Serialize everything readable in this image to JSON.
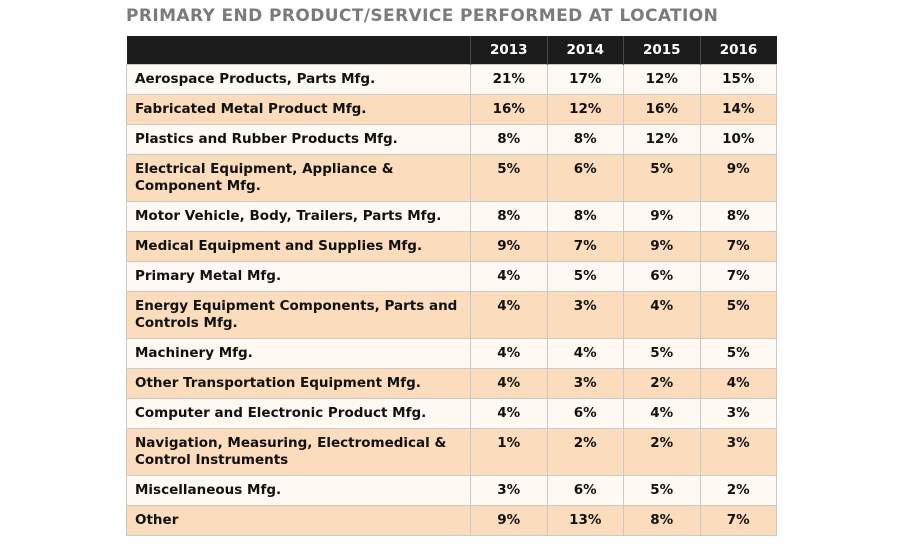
{
  "title": "PRIMARY END PRODUCT/SERVICE PERFORMED AT LOCATION",
  "colors": {
    "header_bg": "#1b1b1b",
    "row_light": "#fef9f3",
    "row_peach": "#fbdcbd",
    "title_gray": "#7b7b7b"
  },
  "chart_data": {
    "type": "table",
    "title": "PRIMARY END PRODUCT/SERVICE PERFORMED AT LOCATION",
    "columns": [
      "",
      "2013",
      "2014",
      "2015",
      "2016"
    ],
    "rows": [
      {
        "label": "Aerospace Products, Parts Mfg.",
        "values": [
          "21%",
          "17%",
          "12%",
          "15%"
        ]
      },
      {
        "label": "Fabricated Metal Product Mfg.",
        "values": [
          "16%",
          "12%",
          "16%",
          "14%"
        ]
      },
      {
        "label": "Plastics and Rubber Products Mfg.",
        "values": [
          "8%",
          "8%",
          "12%",
          "10%"
        ]
      },
      {
        "label": "Electrical Equipment, Appliance & Component Mfg.",
        "values": [
          "5%",
          "6%",
          "5%",
          "9%"
        ]
      },
      {
        "label": "Motor Vehicle, Body, Trailers, Parts Mfg.",
        "values": [
          "8%",
          "8%",
          "9%",
          "8%"
        ]
      },
      {
        "label": "Medical Equipment and Supplies Mfg.",
        "values": [
          "9%",
          "7%",
          "9%",
          "7%"
        ]
      },
      {
        "label": "Primary Metal Mfg.",
        "values": [
          "4%",
          "5%",
          "6%",
          "7%"
        ]
      },
      {
        "label": "Energy Equipment Components, Parts and Controls Mfg.",
        "values": [
          "4%",
          "3%",
          "4%",
          "5%"
        ]
      },
      {
        "label": "Machinery Mfg.",
        "values": [
          "4%",
          "4%",
          "5%",
          "5%"
        ]
      },
      {
        "label": "Other Transportation Equipment Mfg.",
        "values": [
          "4%",
          "3%",
          "2%",
          "4%"
        ]
      },
      {
        "label": "Computer and Electronic Product Mfg.",
        "values": [
          "4%",
          "6%",
          "4%",
          "3%"
        ]
      },
      {
        "label": "Navigation, Measuring, Electromedical & Control Instruments",
        "values": [
          "1%",
          "2%",
          "2%",
          "3%"
        ]
      },
      {
        "label": "Miscellaneous Mfg.",
        "values": [
          "3%",
          "6%",
          "5%",
          "2%"
        ]
      },
      {
        "label": "Other",
        "values": [
          "9%",
          "13%",
          "8%",
          "7%"
        ]
      }
    ]
  }
}
